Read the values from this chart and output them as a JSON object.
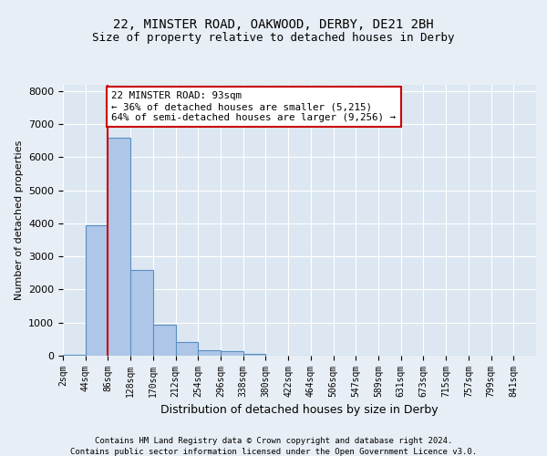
{
  "title1": "22, MINSTER ROAD, OAKWOOD, DERBY, DE21 2BH",
  "title2": "Size of property relative to detached houses in Derby",
  "xlabel": "Distribution of detached houses by size in Derby",
  "ylabel": "Number of detached properties",
  "bin_labels": [
    "2sqm",
    "44sqm",
    "86sqm",
    "128sqm",
    "170sqm",
    "212sqm",
    "254sqm",
    "296sqm",
    "338sqm",
    "380sqm",
    "422sqm",
    "464sqm",
    "506sqm",
    "547sqm",
    "589sqm",
    "631sqm",
    "673sqm",
    "715sqm",
    "757sqm",
    "799sqm",
    "841sqm"
  ],
  "bar_values": [
    20,
    3950,
    6600,
    2600,
    950,
    400,
    155,
    130,
    60,
    0,
    0,
    0,
    0,
    0,
    0,
    0,
    0,
    0,
    0,
    0,
    0
  ],
  "bar_color": "#aec6e8",
  "bar_edge_color": "#5a8fc2",
  "vline_x": 2,
  "vline_color": "#cc0000",
  "annotation_text": "22 MINSTER ROAD: 93sqm\n← 36% of detached houses are smaller (5,215)\n64% of semi-detached houses are larger (9,256) →",
  "annotation_box_color": "#ffffff",
  "annotation_box_edge": "#cc0000",
  "ylim": [
    0,
    8200
  ],
  "yticks": [
    0,
    1000,
    2000,
    3000,
    4000,
    5000,
    6000,
    7000,
    8000
  ],
  "bg_color": "#e8eef5",
  "plot_bg_color": "#dce7f2",
  "footer1": "Contains HM Land Registry data © Crown copyright and database right 2024.",
  "footer2": "Contains public sector information licensed under the Open Government Licence v3.0."
}
